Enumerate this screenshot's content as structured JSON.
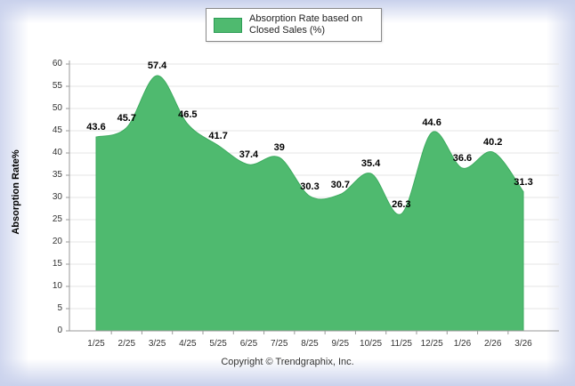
{
  "legend": {
    "line1": "Absorption Rate based on",
    "line2": "Closed Sales (%)"
  },
  "footer": {
    "copyright": "Copyright © Trendgraphix, Inc."
  },
  "chart_data": {
    "type": "area",
    "title": "",
    "xlabel": "",
    "ylabel": "Absorption Rate%",
    "categories": [
      "1/25",
      "2/25",
      "3/25",
      "4/25",
      "5/25",
      "6/25",
      "7/25",
      "8/25",
      "9/25",
      "10/25",
      "11/25",
      "12/25",
      "1/26",
      "2/26",
      "3/26"
    ],
    "series": [
      {
        "name": "Absorption Rate based on Closed Sales (%)",
        "values": [
          43.6,
          45.7,
          57.4,
          46.5,
          41.7,
          37.4,
          39,
          30.3,
          30.7,
          35.4,
          26.3,
          44.6,
          36.6,
          40.2,
          31.3
        ]
      }
    ],
    "ylim": [
      0,
      60
    ],
    "ytick_step": 5,
    "grid": true,
    "legend_position": "top",
    "colors": {
      "area_fill": "#4fba6f",
      "area_stroke": "#3dab5f",
      "grid_line": "#e4e4e4",
      "axis_line": "#9a9a9a",
      "tick_text": "#333333",
      "data_label_text": "#000000"
    }
  }
}
